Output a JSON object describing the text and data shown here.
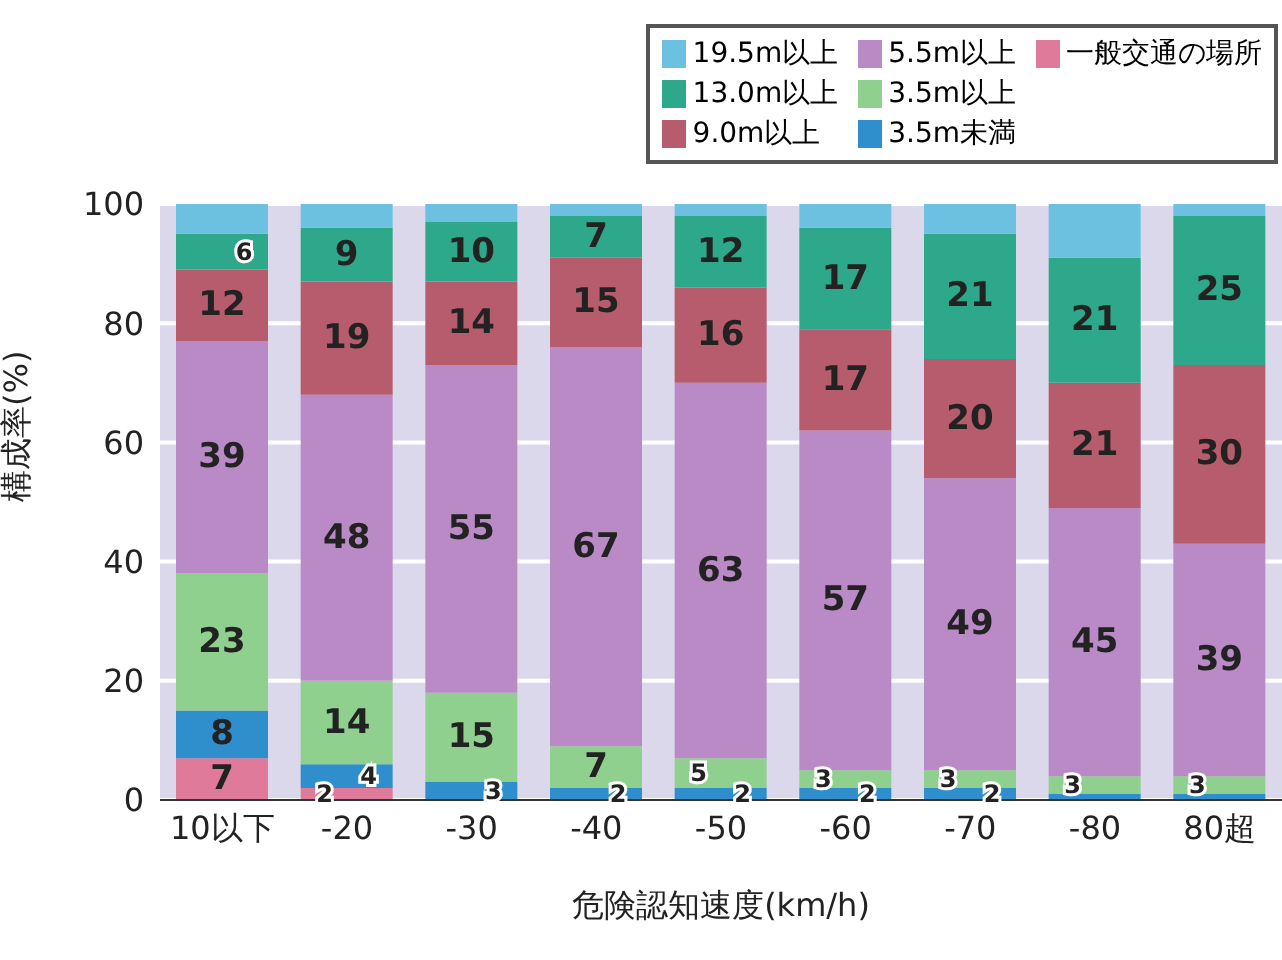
{
  "chart_data": {
    "type": "bar",
    "stacked": true,
    "xlabel": "危険認知速度(km/h)",
    "ylabel": "構成率(%)",
    "categories": [
      "10以下",
      "-20",
      "-30",
      "-40",
      "-50",
      "-60",
      "-70",
      "-80",
      "80超"
    ],
    "series": [
      {
        "name": "一般交通の場所",
        "color": "#e07a9a",
        "values": [
          7,
          2,
          0,
          0,
          0,
          0,
          0,
          0,
          0
        ],
        "value_labels": [
          "7",
          "2",
          null,
          null,
          null,
          null,
          null,
          null,
          null
        ]
      },
      {
        "name": "3.5m未満",
        "color": "#2f8fcc",
        "values": [
          8,
          4,
          3,
          2,
          2,
          2,
          2,
          1,
          1
        ],
        "value_labels": [
          "8",
          "4",
          "3",
          "2",
          "2",
          "2",
          "2",
          null,
          null
        ]
      },
      {
        "name": "3.5m以上",
        "color": "#8fd08f",
        "values": [
          23,
          14,
          15,
          7,
          5,
          3,
          3,
          3,
          3
        ],
        "value_labels": [
          "23",
          "14",
          "15",
          "7",
          "5",
          "3",
          "3",
          "3",
          "3"
        ]
      },
      {
        "name": "5.5m以上",
        "color": "#b98ac6",
        "values": [
          39,
          48,
          55,
          67,
          63,
          57,
          49,
          45,
          39
        ],
        "value_labels": [
          "39",
          "48",
          "55",
          "67",
          "63",
          "57",
          "49",
          "45",
          "39"
        ]
      },
      {
        "name": "9.0m以上",
        "color": "#b65c6c",
        "values": [
          12,
          19,
          14,
          15,
          16,
          17,
          20,
          21,
          30
        ],
        "value_labels": [
          "12",
          "19",
          "14",
          "15",
          "16",
          "17",
          "20",
          "21",
          "30"
        ]
      },
      {
        "name": "13.0m以上",
        "color": "#2ea88a",
        "values": [
          6,
          9,
          10,
          7,
          12,
          17,
          21,
          21,
          25
        ],
        "value_labels": [
          "6",
          "9",
          "10",
          "7",
          "12",
          "17",
          "21",
          "21",
          "25"
        ]
      },
      {
        "name": "19.5m以上",
        "color": "#6cc0e0",
        "values": [
          5,
          4,
          3,
          2,
          2,
          4,
          5,
          9,
          2
        ],
        "value_labels": [
          null,
          null,
          null,
          null,
          null,
          null,
          null,
          null,
          null
        ]
      }
    ],
    "ylim": [
      0,
      100
    ],
    "yticks": [
      0,
      20,
      40,
      60,
      80,
      100
    ],
    "grid": "y",
    "legend": "top right"
  }
}
